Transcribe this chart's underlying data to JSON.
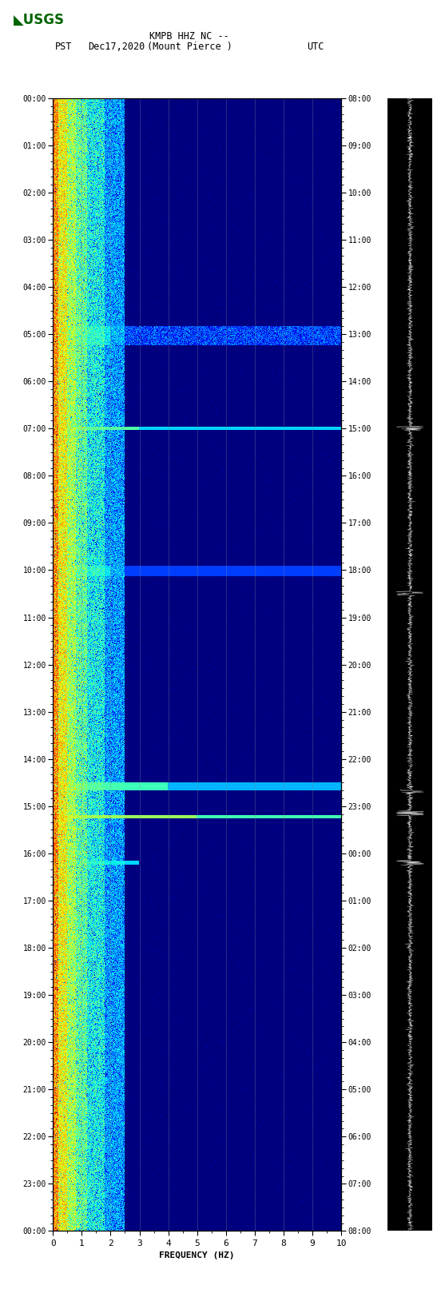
{
  "title_line1": "KMPB HHZ NC --",
  "title_line2": "(Mount Pierce )",
  "date_label": "Dec17,2020",
  "tz_left": "PST",
  "tz_right": "UTC",
  "xlabel": "FREQUENCY (HZ)",
  "freq_min": 0,
  "freq_max": 10,
  "time_hours": 24,
  "fig_width": 5.52,
  "fig_height": 16.13,
  "dpi": 100,
  "spectrogram_bg": "#000066",
  "grid_line_color": "#556677",
  "waveform_bg": "#000000",
  "waveform_fg": "#ffffff"
}
